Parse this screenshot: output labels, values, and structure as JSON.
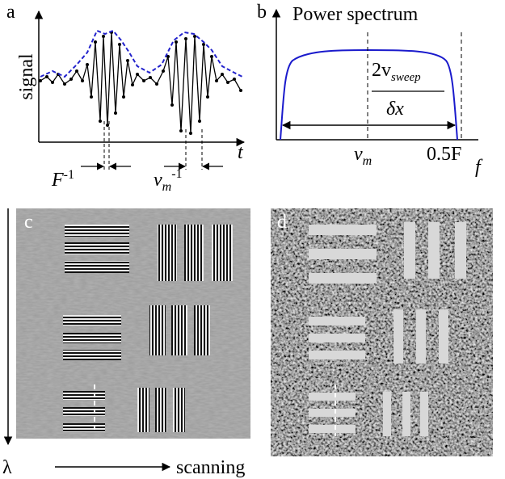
{
  "panels": {
    "a": {
      "label": "a",
      "y_label": "signal",
      "x_label": "t",
      "annotations": [
        {
          "base": "F",
          "sup": "-1"
        },
        {
          "base": "v",
          "sub": "m",
          "sup": "-1"
        }
      ]
    },
    "b": {
      "label": "b",
      "title": "Power spectrum",
      "numerator": {
        "base": "2v",
        "sub": "sweep"
      },
      "denominator": "δx",
      "x_marks": [
        {
          "base": "v",
          "sub": "m"
        },
        "0.5F"
      ],
      "x_label": "f"
    },
    "c": {
      "label": "c",
      "y_label": "λ",
      "x_label": "scanning"
    },
    "d": {
      "label": "d"
    }
  }
}
